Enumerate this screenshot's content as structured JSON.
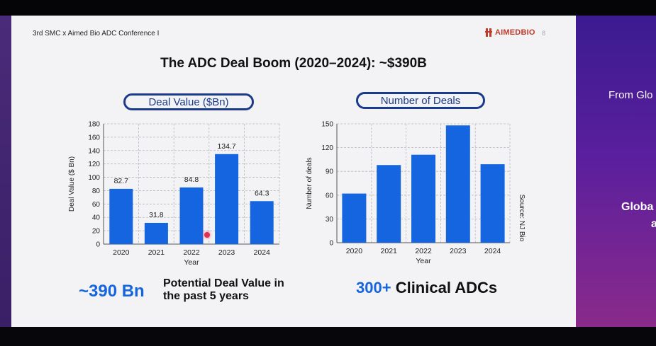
{
  "slide": {
    "conference": "3rd SMC x Aimed Bio ADC Conference I",
    "logo": "AIMEDBIO",
    "page_number": "8",
    "title": "The ADC Deal Boom (2020–2024): ~$390B"
  },
  "next_slide": {
    "text_1": "From Glo",
    "text_2": "Globa",
    "text_3": "a"
  },
  "stats": {
    "left_value": "~390 Bn",
    "left_desc": "Potential Deal Value in the past 5 years",
    "right_value": "300+",
    "right_desc": "Clinical ADCs"
  },
  "colors": {
    "bar": "#1565e0",
    "pill_border": "#1a3a8a",
    "accent_text": "#1565e0",
    "right_panel": "#5a1f9e"
  },
  "chart_data": [
    {
      "type": "bar",
      "title": "Deal Value ($Bn)",
      "categories": [
        "2020",
        "2021",
        "2022",
        "2023",
        "2024"
      ],
      "values": [
        82.7,
        31.8,
        84.8,
        134.7,
        64.3
      ],
      "data_labels": [
        "82.7",
        "31.8",
        "84.8",
        "134.7",
        "64.3"
      ],
      "xlabel": "Year",
      "ylabel": "Deal Value ($ Bn)",
      "ylim": [
        0,
        180
      ],
      "yticks": [
        0,
        20,
        40,
        60,
        80,
        100,
        120,
        140,
        160,
        180
      ],
      "grid": true
    },
    {
      "type": "bar",
      "title": "Number of Deals",
      "categories": [
        "2020",
        "2021",
        "2022",
        "2023",
        "2024"
      ],
      "values": [
        62,
        98,
        111,
        148,
        99
      ],
      "xlabel": "Year",
      "ylabel": "Number of deals",
      "ylim": [
        0,
        150
      ],
      "yticks": [
        0,
        30,
        60,
        90,
        120,
        150
      ],
      "source": "Source: NJ Bio",
      "grid": true
    }
  ]
}
